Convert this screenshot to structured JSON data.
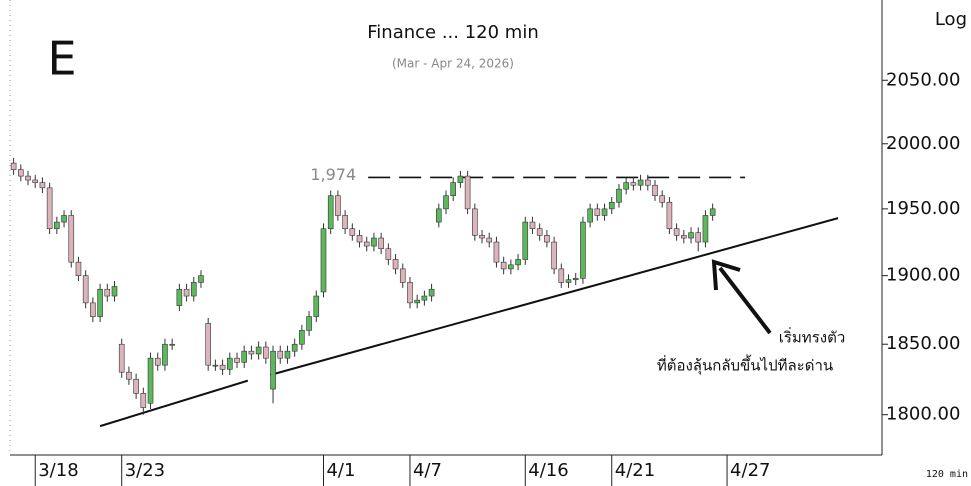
{
  "chart_data": {
    "type": "candlestick",
    "title": "Finance ... 120 min",
    "subtitle": "(Mar - Apr 24, 2026)",
    "panel_label": "E",
    "scale_label": "Log",
    "interval_label": "120 min",
    "log_scale": true,
    "up_color": "#5cb85c",
    "down_color": "#dcb4bc",
    "edge_color": "#333333",
    "xlim": [
      -0.5,
      120.5
    ],
    "ylim": [
      1772,
      2115
    ],
    "xticks": [
      {
        "value": 3,
        "label": "3/18"
      },
      {
        "value": 15,
        "label": "3/23"
      },
      {
        "value": 43,
        "label": "4/1"
      },
      {
        "value": 55,
        "label": "4/7"
      },
      {
        "value": 71,
        "label": "4/16"
      },
      {
        "value": 83,
        "label": "4/21"
      },
      {
        "value": 99,
        "label": "4/27"
      }
    ],
    "yticks": [
      {
        "value": 1800,
        "label": "1800.00"
      },
      {
        "value": 1850,
        "label": "1850.00"
      },
      {
        "value": 1900,
        "label": "1900.00"
      },
      {
        "value": 1950,
        "label": "1950.00"
      },
      {
        "value": 2000,
        "label": "2000.00"
      },
      {
        "value": 2050,
        "label": "2050.00"
      }
    ],
    "open": [
      1985,
      1980,
      1975,
      1972,
      1970,
      1966,
      1935,
      1940,
      1945,
      1910,
      1900,
      1880,
      1870,
      1890,
      1885,
      1850,
      1830,
      1825,
      1815,
      1808,
      1840,
      1835,
      1850,
      1878,
      1890,
      1885,
      1895,
      1865,
      1835,
      1835,
      1832,
      1840,
      1837,
      1845,
      1843,
      1848,
      1818,
      1845,
      1840,
      1845,
      1850,
      1860,
      1870,
      1888,
      1935,
      1960,
      1945,
      1935,
      1930,
      1925,
      1922,
      1928,
      1920,
      1912,
      1905,
      1895,
      1880,
      1882,
      1885,
      1940,
      1950,
      1960,
      1970,
      1975,
      1950,
      1930,
      1928,
      1925,
      1910,
      1905,
      1908,
      1912,
      1940,
      1935,
      1930,
      1925,
      1905,
      1895,
      1897,
      1898,
      1940,
      1950,
      1945,
      1950,
      1955,
      1965,
      1970,
      1968,
      1972,
      1968,
      1960,
      1955,
      1935,
      1930,
      1928,
      1932,
      1925,
      1945
    ],
    "high": [
      1989,
      1984,
      1979,
      1976,
      1974,
      1970,
      1944,
      1949,
      1949,
      1914,
      1904,
      1884,
      1894,
      1894,
      1896,
      1854,
      1834,
      1829,
      1819,
      1844,
      1844,
      1854,
      1854,
      1894,
      1894,
      1899,
      1904,
      1869,
      1839,
      1839,
      1844,
      1844,
      1849,
      1849,
      1852,
      1852,
      1849,
      1849,
      1849,
      1854,
      1864,
      1874,
      1889,
      1939,
      1964,
      1964,
      1949,
      1939,
      1934,
      1929,
      1932,
      1932,
      1924,
      1916,
      1909,
      1899,
      1886,
      1889,
      1894,
      1954,
      1964,
      1974,
      1979,
      1979,
      1954,
      1934,
      1932,
      1929,
      1914,
      1912,
      1916,
      1944,
      1944,
      1939,
      1934,
      1929,
      1909,
      1901,
      1902,
      1944,
      1954,
      1954,
      1954,
      1959,
      1969,
      1974,
      1974,
      1976,
      1976,
      1972,
      1964,
      1959,
      1939,
      1934,
      1936,
      1936,
      1949,
      1954
    ],
    "low": [
      1976,
      1971,
      1968,
      1966,
      1962,
      1931,
      1931,
      1936,
      1906,
      1896,
      1876,
      1866,
      1866,
      1881,
      1881,
      1826,
      1821,
      1811,
      1800,
      1804,
      1831,
      1831,
      1846,
      1874,
      1881,
      1881,
      1891,
      1831,
      1831,
      1828,
      1828,
      1833,
      1833,
      1839,
      1839,
      1836,
      1808,
      1836,
      1836,
      1841,
      1846,
      1856,
      1866,
      1884,
      1931,
      1941,
      1931,
      1926,
      1921,
      1918,
      1918,
      1916,
      1908,
      1901,
      1891,
      1876,
      1876,
      1878,
      1881,
      1936,
      1946,
      1956,
      1966,
      1946,
      1926,
      1924,
      1921,
      1906,
      1901,
      1901,
      1904,
      1908,
      1931,
      1926,
      1921,
      1901,
      1891,
      1891,
      1893,
      1894,
      1936,
      1941,
      1941,
      1946,
      1951,
      1961,
      1964,
      1964,
      1964,
      1956,
      1951,
      1931,
      1926,
      1924,
      1924,
      1918,
      1921,
      1941
    ],
    "close": [
      1980,
      1975,
      1972,
      1970,
      1966,
      1935,
      1940,
      1945,
      1910,
      1900,
      1880,
      1870,
      1890,
      1885,
      1892,
      1830,
      1825,
      1815,
      1805,
      1840,
      1835,
      1850,
      1850,
      1890,
      1885,
      1895,
      1900,
      1835,
      1835,
      1832,
      1840,
      1837,
      1845,
      1843,
      1848,
      1840,
      1845,
      1840,
      1845,
      1850,
      1860,
      1870,
      1885,
      1935,
      1960,
      1945,
      1935,
      1930,
      1925,
      1922,
      1928,
      1920,
      1912,
      1905,
      1895,
      1880,
      1882,
      1885,
      1890,
      1950,
      1960,
      1970,
      1975,
      1950,
      1930,
      1928,
      1925,
      1910,
      1905,
      1908,
      1912,
      1940,
      1935,
      1930,
      1925,
      1905,
      1895,
      1897,
      1898,
      1940,
      1950,
      1945,
      1950,
      1955,
      1965,
      1970,
      1968,
      1972,
      1968,
      1960,
      1955,
      1935,
      1930,
      1928,
      1932,
      1925,
      1945,
      1950
    ],
    "resistance": {
      "value": 1974,
      "label": "1,974",
      "x": [
        49.2,
        101.5
      ]
    },
    "trendlines": [
      {
        "x": [
          12,
          32.5
        ],
        "y": [
          1792,
          1824
        ]
      },
      {
        "x": [
          35.6,
          114.4
        ],
        "y": [
          1828,
          1943
        ]
      }
    ],
    "annotation": [
      "เริ่มทรงตัว",
      "ที่ต้องลุ้นกลับขึ้นไปทีละด่าน"
    ]
  }
}
